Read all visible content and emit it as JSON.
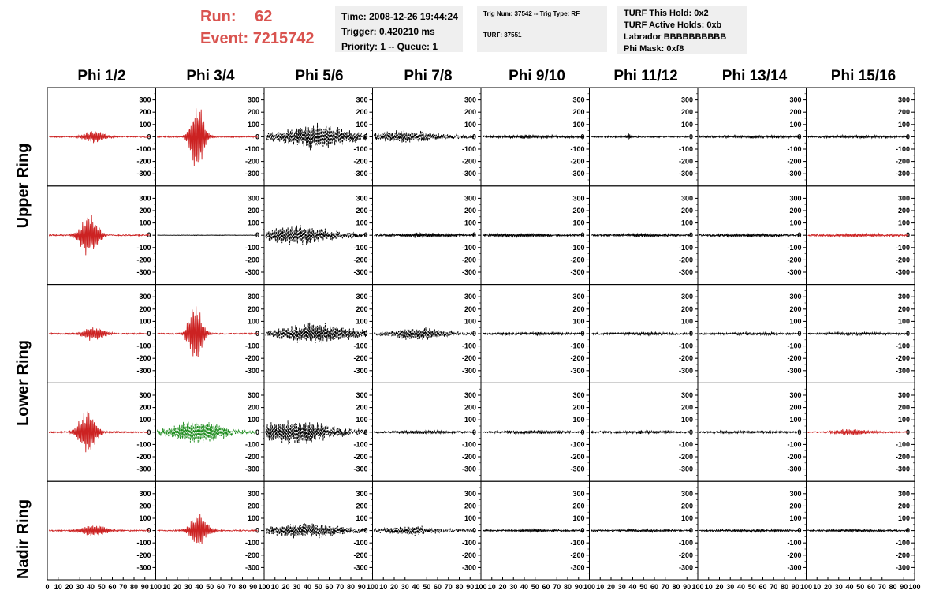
{
  "header": {
    "run_label": "Run:",
    "run_value": "62",
    "event_label": "Event:",
    "event_value": "7215742",
    "time_box": [
      "Time: 2008-12-26 19:44:24",
      "Trigger: 0.420210 ms",
      "Priority: 1 -- Queue: 1"
    ],
    "trig_box": [
      "Trig Num: 37542 -- Trig Type: RF",
      "TURF: 37551"
    ],
    "turf_box": [
      "TURF This Hold: 0x2",
      "TURF Active Holds: 0xb",
      "Labrador BBBBBBBBBB",
      "Phi Mask: 0xf8"
    ]
  },
  "columns": [
    "Phi 1/2",
    "Phi 3/4",
    "Phi 5/6",
    "Phi 7/8",
    "Phi 9/10",
    "Phi 11/12",
    "Phi 13/14",
    "Phi 15/16"
  ],
  "row_titles": [
    {
      "label": "Upper Ring",
      "rows": [
        0,
        1
      ]
    },
    {
      "label": "Lower Ring",
      "rows": [
        2,
        3
      ]
    },
    {
      "label": "Nadir Ring",
      "rows": [
        4
      ]
    }
  ],
  "colors": {
    "red": "#cc2222",
    "black": "#000000",
    "green": "#1a8a1a",
    "title_red": "#d9534f",
    "box_bg": "#efefef"
  },
  "chart_data": {
    "type": "line",
    "ylim": [
      -400,
      400
    ],
    "xlim": [
      0,
      100
    ],
    "y_ticks": [
      "300",
      "200",
      "100",
      "0",
      "-100",
      "-200",
      "-300"
    ],
    "x_ticks": [
      "0",
      "10",
      "20",
      "30",
      "40",
      "50",
      "60",
      "70",
      "80",
      "90",
      "100"
    ],
    "panels": [
      {
        "row": 0,
        "col": 0,
        "color": "red",
        "amp": 60,
        "peak": 45,
        "width": 12,
        "noise": 10,
        "style": "solid"
      },
      {
        "row": 0,
        "col": 1,
        "color": "red",
        "amp": 340,
        "peak": 40,
        "width": 8,
        "noise": 10,
        "style": "solid"
      },
      {
        "row": 0,
        "col": 2,
        "color": "black",
        "amp": 110,
        "peak": 50,
        "width": 40,
        "noise": 40,
        "style": "dashed"
      },
      {
        "row": 0,
        "col": 3,
        "color": "black",
        "amp": 50,
        "peak": 30,
        "width": 40,
        "noise": 25,
        "style": "dashed"
      },
      {
        "row": 0,
        "col": 4,
        "color": "black",
        "amp": 15,
        "peak": 50,
        "width": 40,
        "noise": 12,
        "style": "solid"
      },
      {
        "row": 0,
        "col": 5,
        "color": "black",
        "amp": 30,
        "peak": 38,
        "width": 3,
        "noise": 12,
        "style": "solid"
      },
      {
        "row": 0,
        "col": 6,
        "color": "black",
        "amp": 12,
        "peak": 50,
        "width": 40,
        "noise": 12,
        "style": "solid"
      },
      {
        "row": 0,
        "col": 7,
        "color": "black",
        "amp": 12,
        "peak": 50,
        "width": 40,
        "noise": 10,
        "style": "solid"
      },
      {
        "row": 1,
        "col": 0,
        "color": "red",
        "amp": 220,
        "peak": 40,
        "width": 10,
        "noise": 10,
        "style": "solid"
      },
      {
        "row": 1,
        "col": 1,
        "color": "black",
        "amp": 2,
        "peak": 50,
        "width": 40,
        "noise": 2,
        "style": "solid"
      },
      {
        "row": 1,
        "col": 2,
        "color": "black",
        "amp": 90,
        "peak": 30,
        "width": 40,
        "noise": 35,
        "style": "dashed"
      },
      {
        "row": 1,
        "col": 3,
        "color": "black",
        "amp": 20,
        "peak": 50,
        "width": 40,
        "noise": 12,
        "style": "solid"
      },
      {
        "row": 1,
        "col": 4,
        "color": "black",
        "amp": 18,
        "peak": 40,
        "width": 40,
        "noise": 12,
        "style": "solid"
      },
      {
        "row": 1,
        "col": 5,
        "color": "black",
        "amp": 15,
        "peak": 50,
        "width": 40,
        "noise": 12,
        "style": "solid"
      },
      {
        "row": 1,
        "col": 6,
        "color": "black",
        "amp": 15,
        "peak": 50,
        "width": 40,
        "noise": 12,
        "style": "solid"
      },
      {
        "row": 1,
        "col": 7,
        "color": "red",
        "amp": 15,
        "peak": 50,
        "width": 40,
        "noise": 12,
        "style": "solid"
      },
      {
        "row": 2,
        "col": 0,
        "color": "red",
        "amp": 70,
        "peak": 45,
        "width": 12,
        "noise": 10,
        "style": "solid"
      },
      {
        "row": 2,
        "col": 1,
        "color": "red",
        "amp": 300,
        "peak": 38,
        "width": 8,
        "noise": 10,
        "style": "solid"
      },
      {
        "row": 2,
        "col": 2,
        "color": "black",
        "amp": 100,
        "peak": 50,
        "width": 40,
        "noise": 35,
        "style": "dashed"
      },
      {
        "row": 2,
        "col": 3,
        "color": "black",
        "amp": 60,
        "peak": 45,
        "width": 30,
        "noise": 20,
        "style": "dashed"
      },
      {
        "row": 2,
        "col": 4,
        "color": "black",
        "amp": 12,
        "peak": 50,
        "width": 40,
        "noise": 12,
        "style": "solid"
      },
      {
        "row": 2,
        "col": 5,
        "color": "black",
        "amp": 12,
        "peak": 50,
        "width": 40,
        "noise": 12,
        "style": "solid"
      },
      {
        "row": 2,
        "col": 6,
        "color": "black",
        "amp": 12,
        "peak": 50,
        "width": 40,
        "noise": 12,
        "style": "solid"
      },
      {
        "row": 2,
        "col": 7,
        "color": "black",
        "amp": 12,
        "peak": 50,
        "width": 40,
        "noise": 10,
        "style": "solid"
      },
      {
        "row": 3,
        "col": 0,
        "color": "red",
        "amp": 220,
        "peak": 38,
        "width": 10,
        "noise": 10,
        "style": "solid"
      },
      {
        "row": 3,
        "col": 1,
        "color": "green",
        "amp": 110,
        "peak": 40,
        "width": 30,
        "noise": 30,
        "style": "dashed"
      },
      {
        "row": 3,
        "col": 2,
        "color": "black",
        "amp": 120,
        "peak": 30,
        "width": 40,
        "noise": 40,
        "style": "dashed"
      },
      {
        "row": 3,
        "col": 3,
        "color": "black",
        "amp": 15,
        "peak": 50,
        "width": 40,
        "noise": 10,
        "style": "solid"
      },
      {
        "row": 3,
        "col": 4,
        "color": "black",
        "amp": 15,
        "peak": 50,
        "width": 40,
        "noise": 10,
        "style": "solid"
      },
      {
        "row": 3,
        "col": 5,
        "color": "black",
        "amp": 12,
        "peak": 50,
        "width": 40,
        "noise": 10,
        "style": "solid"
      },
      {
        "row": 3,
        "col": 6,
        "color": "black",
        "amp": 12,
        "peak": 50,
        "width": 40,
        "noise": 10,
        "style": "solid"
      },
      {
        "row": 3,
        "col": 7,
        "color": "red",
        "amp": 30,
        "peak": 45,
        "width": 20,
        "noise": 10,
        "style": "solid"
      },
      {
        "row": 4,
        "col": 0,
        "color": "red",
        "amp": 60,
        "peak": 45,
        "width": 15,
        "noise": 10,
        "style": "solid"
      },
      {
        "row": 4,
        "col": 1,
        "color": "red",
        "amp": 170,
        "peak": 42,
        "width": 10,
        "noise": 10,
        "style": "solid"
      },
      {
        "row": 4,
        "col": 2,
        "color": "black",
        "amp": 70,
        "peak": 40,
        "width": 40,
        "noise": 30,
        "style": "dashed"
      },
      {
        "row": 4,
        "col": 3,
        "color": "black",
        "amp": 45,
        "peak": 35,
        "width": 30,
        "noise": 20,
        "style": "dashed"
      },
      {
        "row": 4,
        "col": 4,
        "color": "black",
        "amp": 12,
        "peak": 50,
        "width": 40,
        "noise": 10,
        "style": "solid"
      },
      {
        "row": 4,
        "col": 5,
        "color": "black",
        "amp": 12,
        "peak": 50,
        "width": 40,
        "noise": 10,
        "style": "solid"
      },
      {
        "row": 4,
        "col": 6,
        "color": "black",
        "amp": 12,
        "peak": 50,
        "width": 40,
        "noise": 10,
        "style": "solid"
      },
      {
        "row": 4,
        "col": 7,
        "color": "black",
        "amp": 12,
        "peak": 50,
        "width": 40,
        "noise": 10,
        "style": "solid"
      }
    ]
  }
}
